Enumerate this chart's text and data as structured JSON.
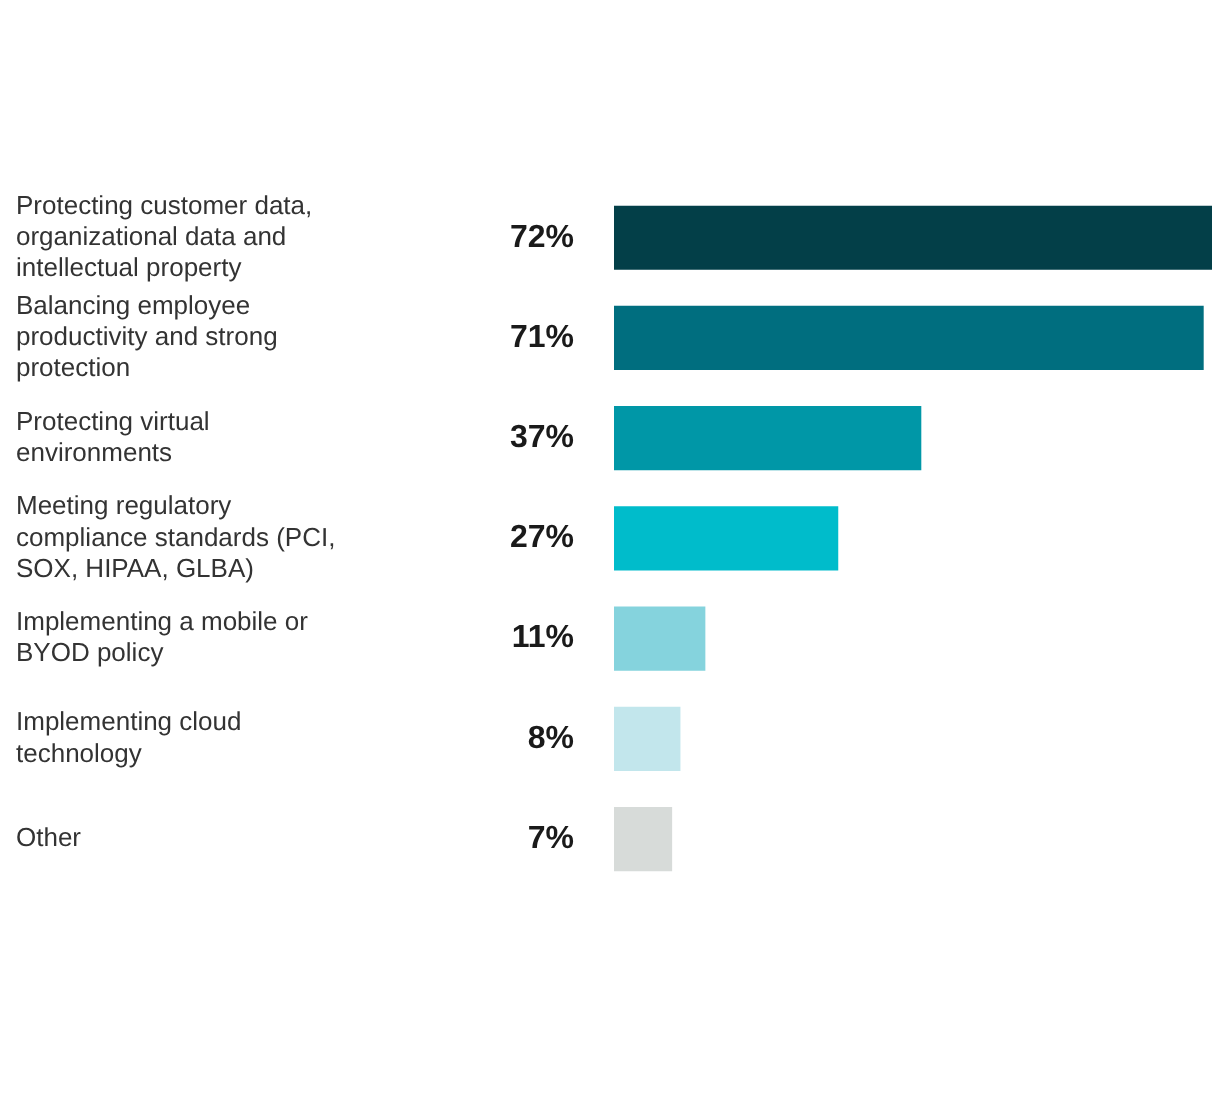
{
  "chart_data": {
    "type": "bar",
    "orientation": "horizontal",
    "categories": [
      "Protecting customer data, organizational data and intellectual property",
      "Balancing employee productivity and strong protection",
      "Protecting virtual environments",
      "Meeting regulatory compliance standards (PCI, SOX, HIPAA, GLBA)",
      "Implementing a mobile or BYOD policy",
      "Implementing cloud technology",
      "Other"
    ],
    "values": [
      72,
      71,
      37,
      27,
      11,
      8,
      7
    ],
    "value_labels": [
      "72%",
      "71%",
      "37%",
      "27%",
      "11%",
      "8%",
      "7%"
    ],
    "colors": [
      "#033f48",
      "#006e7f",
      "#0097a7",
      "#00bccb",
      "#85d3dd",
      "#c2e6ec",
      "#d7dbd9"
    ],
    "grid": false,
    "legend": false
  }
}
